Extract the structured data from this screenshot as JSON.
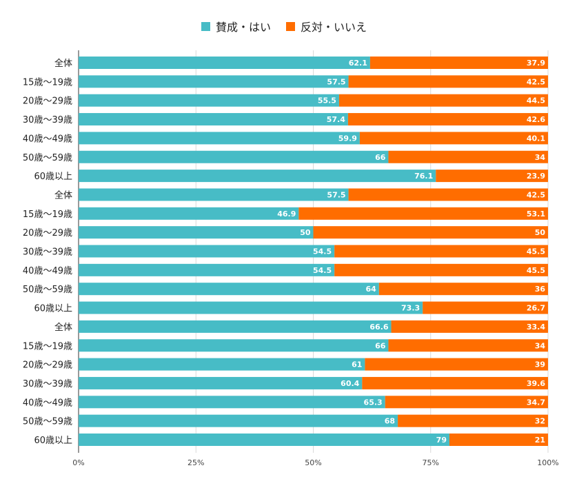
{
  "colors": {
    "yes": "#47BCC6",
    "no": "#FF6D00",
    "grid": "#d9d9d9",
    "axis": "#333333"
  },
  "legend": {
    "yes": "賛成・はい",
    "no": "反対・いいえ"
  },
  "chart_data": {
    "type": "bar",
    "orientation": "horizontal",
    "stacked": "percent",
    "categories": [
      "全体",
      "15歳〜19歳",
      "20歳〜29歳",
      "30歳〜39歳",
      "40歳〜49歳",
      "50歳〜59歳",
      "60歳以上",
      "全体",
      "15歳〜19歳",
      "20歳〜29歳",
      "30歳〜39歳",
      "40歳〜49歳",
      "50歳〜59歳",
      "60歳以上",
      "全体",
      "15歳〜19歳",
      "20歳〜29歳",
      "30歳〜39歳",
      "40歳〜49歳",
      "50歳〜59歳",
      "60歳以上"
    ],
    "series": [
      {
        "name": "賛成・はい",
        "values": [
          62.1,
          57.5,
          55.5,
          57.4,
          59.9,
          66,
          76.1,
          57.5,
          46.9,
          50,
          54.5,
          54.5,
          64,
          73.3,
          66.6,
          66,
          61,
          60.4,
          65.3,
          68,
          79
        ]
      },
      {
        "name": "反対・いいえ",
        "values": [
          37.9,
          42.5,
          44.5,
          42.6,
          40.1,
          34,
          23.9,
          42.5,
          53.1,
          50,
          45.5,
          45.5,
          36,
          26.7,
          33.4,
          34,
          39,
          39.6,
          34.7,
          32,
          21
        ]
      }
    ],
    "x_ticks": [
      "0%",
      "25%",
      "50%",
      "75%",
      "100%"
    ],
    "xlim": [
      0,
      100
    ],
    "legend_position": "top"
  }
}
